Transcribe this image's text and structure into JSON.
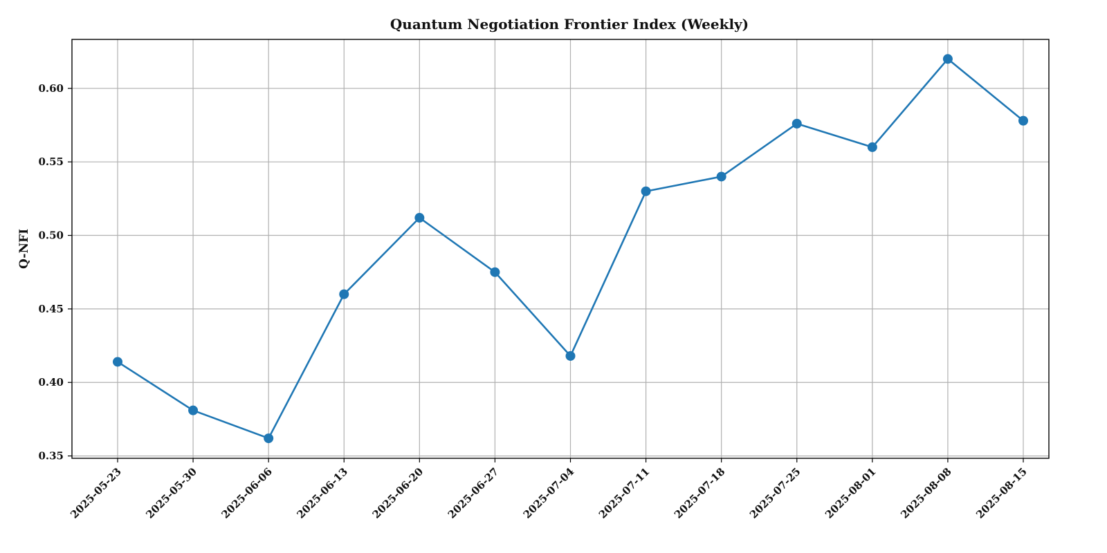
{
  "chart_data": {
    "type": "line",
    "title": "Quantum Negotiation Frontier Index (Weekly)",
    "xlabel": "",
    "ylabel": "Q-NFI",
    "x": [
      "2025-05-23",
      "2025-05-30",
      "2025-06-06",
      "2025-06-13",
      "2025-06-20",
      "2025-06-27",
      "2025-07-04",
      "2025-07-11",
      "2025-07-18",
      "2025-07-25",
      "2025-08-01",
      "2025-08-08",
      "2025-08-15"
    ],
    "series": [
      {
        "values": [
          0.414,
          0.381,
          0.362,
          0.46,
          0.512,
          0.475,
          0.418,
          0.53,
          0.54,
          0.576,
          0.56,
          0.62,
          0.578
        ]
      }
    ],
    "ylim": [
      0.3484,
      0.6333
    ],
    "yticks": [
      0.35,
      0.4,
      0.45,
      0.5,
      0.55,
      0.6
    ],
    "ytick_labels": [
      "0.35",
      "0.40",
      "0.45",
      "0.50",
      "0.55",
      "0.60"
    ],
    "grid": true,
    "marker": "circle",
    "colors": {
      "line": "#1f77b4",
      "grid": "#b0b0b0",
      "axis": "#000000"
    }
  }
}
